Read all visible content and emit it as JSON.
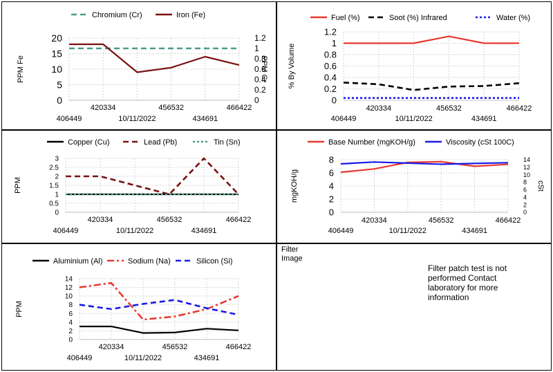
{
  "chart_data": [
    {
      "type": "line",
      "categories": [
        "406449",
        "420334",
        "10/11/2022",
        "456532",
        "434691",
        "466422"
      ],
      "series": [
        {
          "name": "Chromium (Cr)",
          "axis": "right",
          "color": "#4a9a8c",
          "dash": "dashed",
          "values": [
            1,
            1,
            1,
            1,
            1,
            1
          ]
        },
        {
          "name": "Iron (Fe)",
          "axis": "left",
          "color": "#7a1010",
          "dash": "solid",
          "values": [
            18,
            18,
            9,
            10.5,
            14,
            11.3
          ]
        }
      ],
      "ylabel": "PPM Fe",
      "ylim": [
        0,
        20
      ],
      "yticks": [
        0,
        5,
        10,
        15,
        20
      ],
      "y2label": "PPM Cr",
      "y2lim": [
        0,
        1.2
      ],
      "y2ticks": [
        0,
        0.2,
        0.4,
        0.6,
        0.8,
        1,
        1.2
      ],
      "grid": true,
      "legend": "top"
    },
    {
      "type": "line",
      "categories": [
        "406449",
        "420334",
        "10/11/2022",
        "456532",
        "434691",
        "466422"
      ],
      "series": [
        {
          "name": "Fuel (%)",
          "color": "#e8392e",
          "dash": "solid",
          "values": [
            1,
            1,
            1,
            1.12,
            1,
            1
          ]
        },
        {
          "name": "Soot (%) Infrared",
          "color": "#000000",
          "dash": "dashed",
          "values": [
            0.31,
            0.28,
            0.18,
            0.24,
            0.25,
            0.3
          ]
        },
        {
          "name": "Water (%)",
          "color": "#1a1ae6",
          "dash": "dotted",
          "values": [
            0.04,
            0.04,
            0.04,
            0.04,
            0.04,
            0.04
          ]
        }
      ],
      "ylabel": "% By Volume",
      "ylim": [
        0,
        1.2
      ],
      "yticks": [
        0,
        0.2,
        0.4,
        0.6,
        0.8,
        1,
        1.2
      ],
      "yticklabels": [
        "0",
        "0.2",
        "0.4",
        "0.6",
        "0.8",
        "1",
        "1.2"
      ],
      "grid": true,
      "legend": "top"
    },
    {
      "type": "line",
      "categories": [
        "406449",
        "420334",
        "10/11/2022",
        "456532",
        "434691",
        "466422"
      ],
      "series": [
        {
          "name": "Copper (Cu)",
          "color": "#000000",
          "dash": "solid",
          "values": [
            1,
            1,
            1,
            1,
            1,
            1
          ]
        },
        {
          "name": "Lead (Pb)",
          "color": "#7a1010",
          "dash": "dashed",
          "values": [
            2,
            2,
            1.5,
            1,
            3,
            1
          ]
        },
        {
          "name": "Tin (Sn)",
          "color": "#4a9a8c",
          "dash": "dotted",
          "values": [
            1,
            1,
            1,
            1,
            1,
            1
          ]
        }
      ],
      "ylabel": "PPM",
      "ylim": [
        0,
        3
      ],
      "yticks": [
        0,
        0.5,
        1,
        1.5,
        2,
        2.5,
        3
      ],
      "grid": true,
      "legend": "top"
    },
    {
      "type": "line",
      "categories": [
        "406449",
        "420334",
        "10/11/2022",
        "456532",
        "434691",
        "466422"
      ],
      "series": [
        {
          "name": "Base Number (mgKOH/g)",
          "axis": "left",
          "color": "#e8392e",
          "dash": "solid",
          "values": [
            6.1,
            6.6,
            7.6,
            7.7,
            7.0,
            7.3
          ]
        },
        {
          "name": "Viscosity (cSt 100C)",
          "axis": "right",
          "color": "#1a1ae6",
          "dash": "solid",
          "values": [
            12.9,
            13.4,
            13.1,
            12.8,
            13.0,
            13.2
          ]
        }
      ],
      "ylabel": "mgKOH/g",
      "ylim": [
        0,
        8
      ],
      "yticks": [
        0,
        2,
        4,
        6,
        8
      ],
      "y2label": "cSt",
      "y2lim": [
        0,
        14
      ],
      "y2ticks": [
        0,
        2,
        4,
        6,
        8,
        10,
        12,
        14
      ],
      "grid": true,
      "legend": "top"
    },
    {
      "type": "line",
      "categories": [
        "406449",
        "420334",
        "10/11/2022",
        "456532",
        "434691",
        "466422"
      ],
      "series": [
        {
          "name": "Aluminium (Al)",
          "color": "#000000",
          "dash": "solid",
          "values": [
            3,
            3,
            1.5,
            1.6,
            2.5,
            2.1
          ]
        },
        {
          "name": "Sodium (Na)",
          "color": "#e8392e",
          "dash": "dashdot",
          "values": [
            12,
            13,
            4.6,
            5.3,
            7,
            10
          ]
        },
        {
          "name": "Silicon (Si)",
          "color": "#1a1ae6",
          "dash": "dashed",
          "values": [
            8,
            7,
            8.2,
            9.1,
            7.2,
            5.7
          ]
        }
      ],
      "ylabel": "PPM",
      "ylim": [
        0,
        14
      ],
      "yticks": [
        0,
        2,
        4,
        6,
        8,
        10,
        12,
        14
      ],
      "grid": true,
      "legend": "top"
    }
  ],
  "filter": {
    "label_line1": "Filter",
    "label_line2": "Image",
    "message": "Filter patch test is not performed Contact laboratory for more information"
  }
}
